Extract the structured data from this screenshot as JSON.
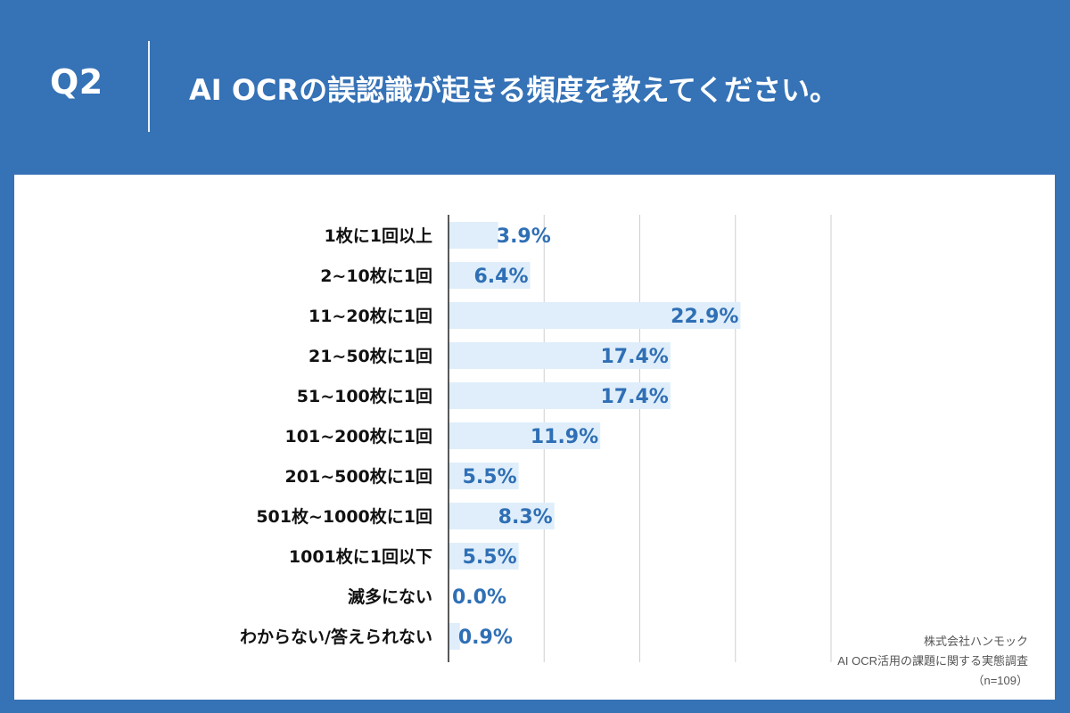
{
  "header": {
    "question_label": "Q2",
    "title": "AI OCRの誤認識が起きる頻度を教えてください。"
  },
  "source": {
    "company": "株式会社ハンモック",
    "survey": "AI OCR活用の課題に関する実態調査",
    "sample": "（n=109）"
  },
  "colors": {
    "header_bg": "#3572B6",
    "bar_fill": "#DFEEFA",
    "value_text": "#2F6FB5",
    "category_text": "#111111",
    "gridline": "#CFCFCF",
    "axis": "#222222"
  },
  "chart_data": {
    "type": "bar",
    "orientation": "horizontal",
    "categories": [
      "1枚に1回以上",
      "2~10枚に1回",
      "11~20枚に1回",
      "21~50枚に1回",
      "51~100枚に1回",
      "101~200枚に1回",
      "201~500枚に1回",
      "501枚~1000枚に1回",
      "1001枚に1回以下",
      "滅多にない",
      "わからない/答えられない"
    ],
    "values": [
      3.9,
      6.4,
      22.9,
      17.4,
      17.4,
      11.9,
      5.5,
      8.3,
      5.5,
      0.0,
      0.9
    ],
    "value_labels": [
      "3.9%",
      "6.4%",
      "22.9%",
      "17.4%",
      "17.4%",
      "11.9%",
      "5.5%",
      "8.3%",
      "5.5%",
      "0.0%",
      "0.9%"
    ],
    "xlim": [
      0,
      30
    ],
    "grid": true,
    "legend": "none"
  }
}
